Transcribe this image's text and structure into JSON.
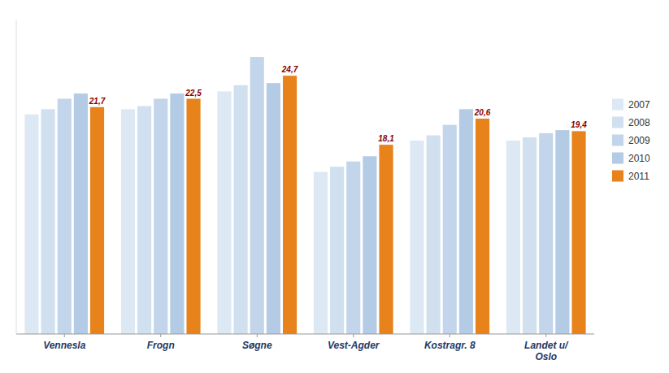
{
  "chart_data": {
    "type": "bar",
    "categories": [
      "Vennesla",
      "Frogn",
      "Søgne",
      "Vest-Agder",
      "Kostragr. 8",
      "Landet u/\nOslo"
    ],
    "series": [
      {
        "name": "2007",
        "color": "#dce8f3",
        "values": [
          21.0,
          21.5,
          23.2,
          15.5,
          18.5,
          18.5
        ]
      },
      {
        "name": "2008",
        "color": "#d0e0ef",
        "values": [
          21.5,
          21.8,
          23.8,
          16.0,
          19.0,
          18.8
        ]
      },
      {
        "name": "2009",
        "color": "#c2d5ea",
        "values": [
          22.5,
          22.5,
          26.5,
          16.5,
          20.0,
          19.2
        ]
      },
      {
        "name": "2010",
        "color": "#b4cbe5",
        "values": [
          23.0,
          23.0,
          24.0,
          17.0,
          21.5,
          19.5
        ]
      },
      {
        "name": "2011",
        "color": "#E8821A",
        "values": [
          21.7,
          22.5,
          24.7,
          18.1,
          20.6,
          19.4
        ],
        "data_labels": true,
        "value_labels": [
          "21,7",
          "22,5",
          "24,7",
          "18,1",
          "20,6",
          "19,4"
        ]
      }
    ],
    "ylim": [
      0,
      30
    ],
    "grid": false,
    "legend": "right",
    "tick_labels": "x"
  }
}
